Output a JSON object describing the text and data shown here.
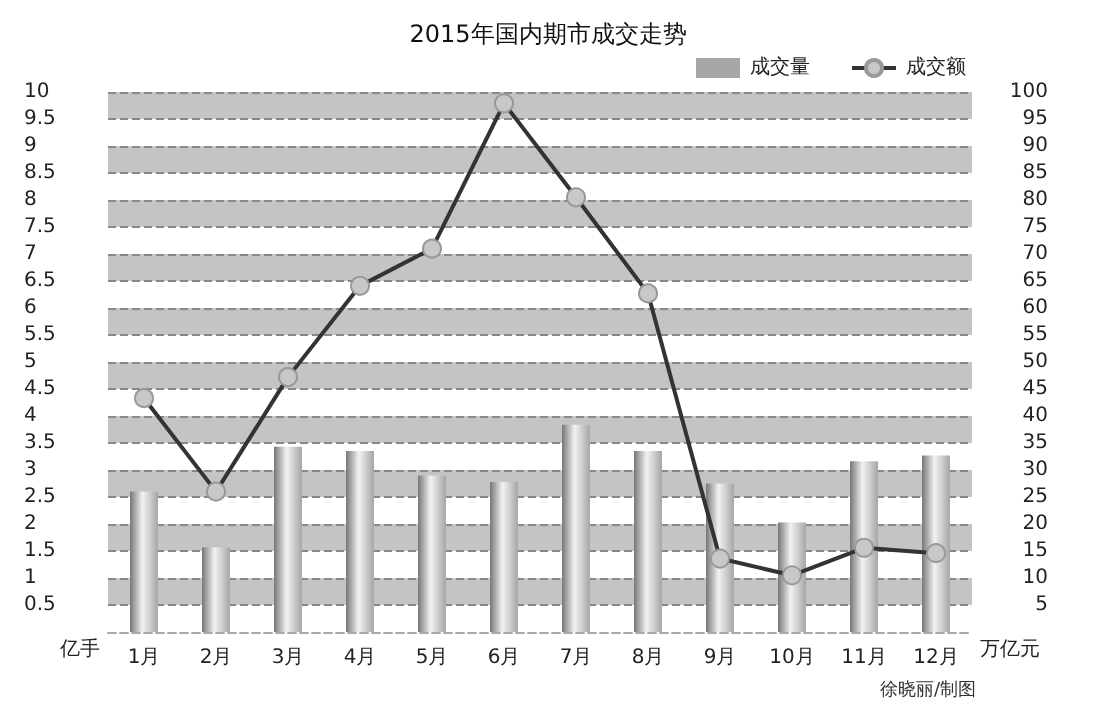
{
  "chart_data": {
    "type": "bar",
    "title": "2015年国内期市成交走势",
    "ylabel": "亿手",
    "y2label": "万亿元",
    "categories": [
      "1月",
      "2月",
      "3月",
      "4月",
      "5月",
      "6月",
      "7月",
      "8月",
      "9月",
      "10月",
      "11月",
      "12月"
    ],
    "series": [
      {
        "name": "成交量",
        "color": "#a6a6a6",
        "values": [
          2.6,
          1.57,
          3.43,
          3.35,
          2.9,
          2.78,
          3.84,
          3.35,
          2.75,
          2.03,
          3.16,
          3.27
        ]
      },
      {
        "name": "成交额",
        "type": "line",
        "axis": "y2",
        "color": "#333333",
        "marker": "circle",
        "values": [
          43.3,
          26,
          47.2,
          64.1,
          71,
          97.9,
          80.5,
          62.7,
          13.6,
          10.5,
          15.6,
          14.6
        ]
      }
    ],
    "ylim": [
      0,
      10
    ],
    "yticks": [
      0.5,
      1,
      1.5,
      2,
      2.5,
      3,
      3.5,
      4,
      4.5,
      5,
      5.5,
      6,
      6.5,
      7,
      7.5,
      8,
      8.5,
      9,
      9.5,
      10
    ],
    "y2lim": [
      0,
      100
    ],
    "y2ticks": [
      5,
      10,
      15,
      20,
      25,
      30,
      35,
      40,
      45,
      50,
      55,
      60,
      65,
      70,
      75,
      80,
      85,
      90,
      95,
      100
    ],
    "grid": true,
    "legend": "top right",
    "annotations": [
      "徐晓丽/制图"
    ]
  }
}
